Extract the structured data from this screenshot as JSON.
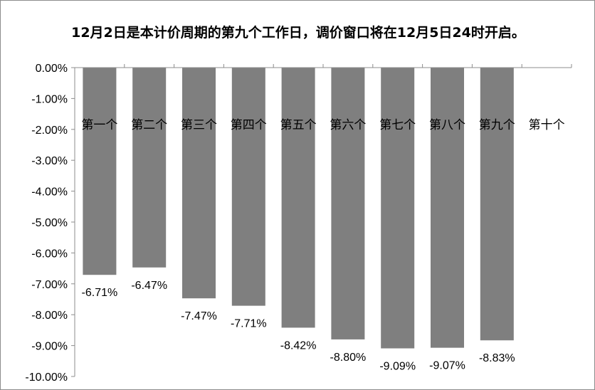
{
  "chart_data": {
    "type": "bar",
    "title": "12月2日是本计价周期的第九个工作日，调价窗口将在12月5日24时开启。",
    "xlabel": "",
    "ylabel": "",
    "categories": [
      "第一个",
      "第二个",
      "第三个",
      "第四个",
      "第五个",
      "第六个",
      "第七个",
      "第八个",
      "第九个",
      "第十个"
    ],
    "values": [
      -6.71,
      -6.47,
      -7.47,
      -7.71,
      -8.42,
      -8.8,
      -9.09,
      -9.07,
      -8.83,
      null
    ],
    "value_labels": [
      "-6.71%",
      "-6.47%",
      "-7.47%",
      "-7.71%",
      "-8.42%",
      "-8.80%",
      "-9.09%",
      "-9.07%",
      "-8.83%",
      ""
    ],
    "ylim": [
      -10,
      0
    ],
    "ytick_values": [
      0,
      -1,
      -2,
      -3,
      -4,
      -5,
      -6,
      -7,
      -8,
      -9,
      -10
    ],
    "ytick_labels": [
      "0.00%",
      "-1.00%",
      "-2.00%",
      "-3.00%",
      "-4.00%",
      "-5.00%",
      "-6.00%",
      "-7.00%",
      "-8.00%",
      "-9.00%",
      "-10.00%"
    ],
    "grid": false,
    "legend": "none",
    "bar_color": "#7f7f7f"
  }
}
